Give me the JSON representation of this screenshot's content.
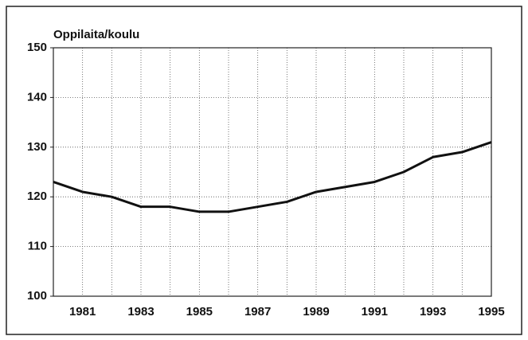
{
  "chart_data": {
    "type": "line",
    "title": "Oppilaita/koulu",
    "x": [
      1980,
      1981,
      1982,
      1983,
      1984,
      1985,
      1986,
      1987,
      1988,
      1989,
      1990,
      1991,
      1992,
      1993,
      1994,
      1995
    ],
    "values": [
      123,
      121,
      120,
      118,
      118,
      117,
      117,
      118,
      119,
      121,
      122,
      123,
      125,
      128,
      129,
      131
    ],
    "color": "#111111",
    "xlim": [
      1980,
      1995
    ],
    "xticks": [
      1981,
      1983,
      1985,
      1987,
      1989,
      1991,
      1993,
      1995
    ],
    "xminor_ticks": [
      1980,
      1981,
      1982,
      1983,
      1984,
      1985,
      1986,
      1987,
      1988,
      1989,
      1990,
      1991,
      1992,
      1993,
      1994,
      1995
    ],
    "ylim": [
      100,
      150
    ],
    "yticks": [
      100,
      110,
      120,
      130,
      140,
      150
    ],
    "grid": true
  }
}
